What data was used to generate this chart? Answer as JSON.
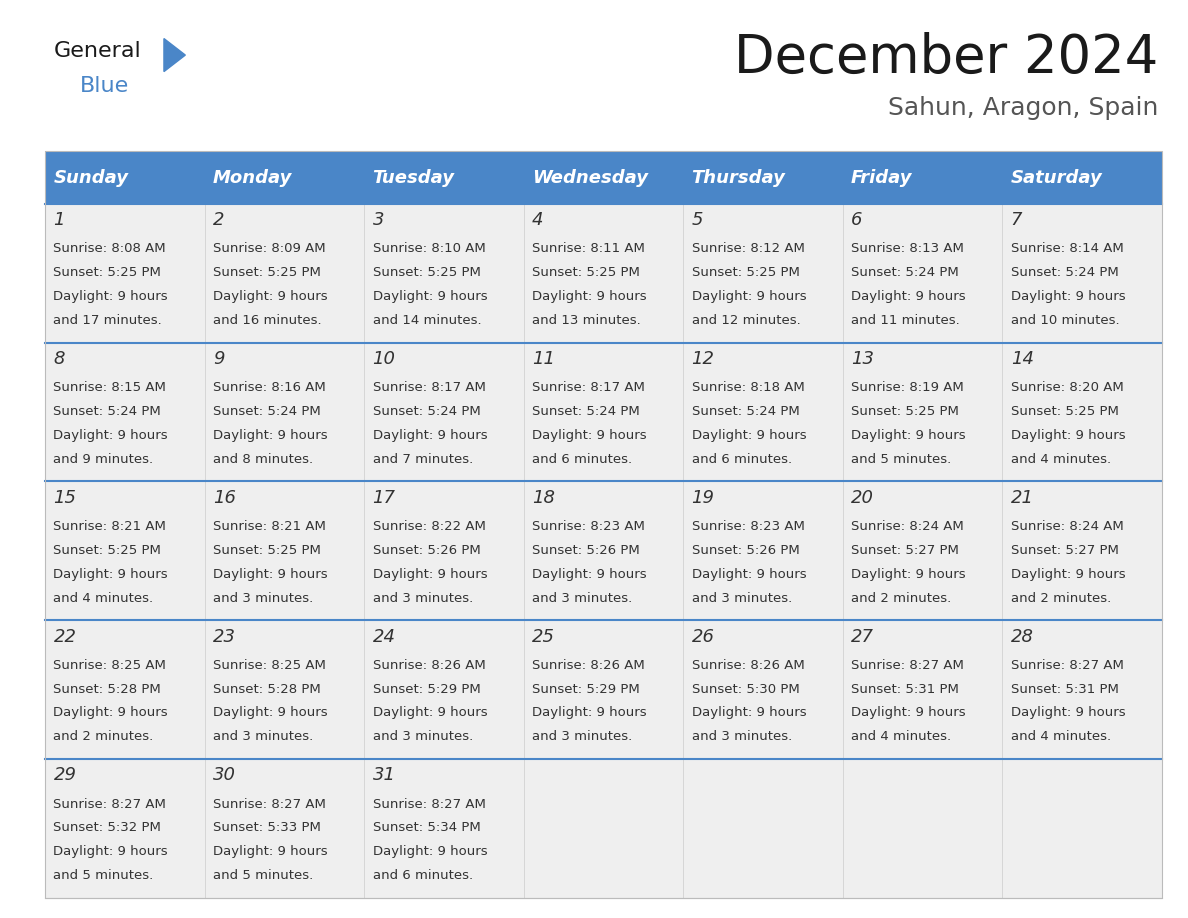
{
  "title": "December 2024",
  "subtitle": "Sahun, Aragon, Spain",
  "header_color": "#4a86c8",
  "header_text_color": "#ffffff",
  "cell_bg_color": "#efefef",
  "cell_text_color": "#333333",
  "border_color": "#4a86c8",
  "day_names": [
    "Sunday",
    "Monday",
    "Tuesday",
    "Wednesday",
    "Thursday",
    "Friday",
    "Saturday"
  ],
  "weeks": [
    [
      {
        "day": 1,
        "sunrise": "8:08 AM",
        "sunset": "5:25 PM",
        "daylight": "9 hours and 17 minutes."
      },
      {
        "day": 2,
        "sunrise": "8:09 AM",
        "sunset": "5:25 PM",
        "daylight": "9 hours and 16 minutes."
      },
      {
        "day": 3,
        "sunrise": "8:10 AM",
        "sunset": "5:25 PM",
        "daylight": "9 hours and 14 minutes."
      },
      {
        "day": 4,
        "sunrise": "8:11 AM",
        "sunset": "5:25 PM",
        "daylight": "9 hours and 13 minutes."
      },
      {
        "day": 5,
        "sunrise": "8:12 AM",
        "sunset": "5:25 PM",
        "daylight": "9 hours and 12 minutes."
      },
      {
        "day": 6,
        "sunrise": "8:13 AM",
        "sunset": "5:24 PM",
        "daylight": "9 hours and 11 minutes."
      },
      {
        "day": 7,
        "sunrise": "8:14 AM",
        "sunset": "5:24 PM",
        "daylight": "9 hours and 10 minutes."
      }
    ],
    [
      {
        "day": 8,
        "sunrise": "8:15 AM",
        "sunset": "5:24 PM",
        "daylight": "9 hours and 9 minutes."
      },
      {
        "day": 9,
        "sunrise": "8:16 AM",
        "sunset": "5:24 PM",
        "daylight": "9 hours and 8 minutes."
      },
      {
        "day": 10,
        "sunrise": "8:17 AM",
        "sunset": "5:24 PM",
        "daylight": "9 hours and 7 minutes."
      },
      {
        "day": 11,
        "sunrise": "8:17 AM",
        "sunset": "5:24 PM",
        "daylight": "9 hours and 6 minutes."
      },
      {
        "day": 12,
        "sunrise": "8:18 AM",
        "sunset": "5:24 PM",
        "daylight": "9 hours and 6 minutes."
      },
      {
        "day": 13,
        "sunrise": "8:19 AM",
        "sunset": "5:25 PM",
        "daylight": "9 hours and 5 minutes."
      },
      {
        "day": 14,
        "sunrise": "8:20 AM",
        "sunset": "5:25 PM",
        "daylight": "9 hours and 4 minutes."
      }
    ],
    [
      {
        "day": 15,
        "sunrise": "8:21 AM",
        "sunset": "5:25 PM",
        "daylight": "9 hours and 4 minutes."
      },
      {
        "day": 16,
        "sunrise": "8:21 AM",
        "sunset": "5:25 PM",
        "daylight": "9 hours and 3 minutes."
      },
      {
        "day": 17,
        "sunrise": "8:22 AM",
        "sunset": "5:26 PM",
        "daylight": "9 hours and 3 minutes."
      },
      {
        "day": 18,
        "sunrise": "8:23 AM",
        "sunset": "5:26 PM",
        "daylight": "9 hours and 3 minutes."
      },
      {
        "day": 19,
        "sunrise": "8:23 AM",
        "sunset": "5:26 PM",
        "daylight": "9 hours and 3 minutes."
      },
      {
        "day": 20,
        "sunrise": "8:24 AM",
        "sunset": "5:27 PM",
        "daylight": "9 hours and 2 minutes."
      },
      {
        "day": 21,
        "sunrise": "8:24 AM",
        "sunset": "5:27 PM",
        "daylight": "9 hours and 2 minutes."
      }
    ],
    [
      {
        "day": 22,
        "sunrise": "8:25 AM",
        "sunset": "5:28 PM",
        "daylight": "9 hours and 2 minutes."
      },
      {
        "day": 23,
        "sunrise": "8:25 AM",
        "sunset": "5:28 PM",
        "daylight": "9 hours and 3 minutes."
      },
      {
        "day": 24,
        "sunrise": "8:26 AM",
        "sunset": "5:29 PM",
        "daylight": "9 hours and 3 minutes."
      },
      {
        "day": 25,
        "sunrise": "8:26 AM",
        "sunset": "5:29 PM",
        "daylight": "9 hours and 3 minutes."
      },
      {
        "day": 26,
        "sunrise": "8:26 AM",
        "sunset": "5:30 PM",
        "daylight": "9 hours and 3 minutes."
      },
      {
        "day": 27,
        "sunrise": "8:27 AM",
        "sunset": "5:31 PM",
        "daylight": "9 hours and 4 minutes."
      },
      {
        "day": 28,
        "sunrise": "8:27 AM",
        "sunset": "5:31 PM",
        "daylight": "9 hours and 4 minutes."
      }
    ],
    [
      {
        "day": 29,
        "sunrise": "8:27 AM",
        "sunset": "5:32 PM",
        "daylight": "9 hours and 5 minutes."
      },
      {
        "day": 30,
        "sunrise": "8:27 AM",
        "sunset": "5:33 PM",
        "daylight": "9 hours and 5 minutes."
      },
      {
        "day": 31,
        "sunrise": "8:27 AM",
        "sunset": "5:34 PM",
        "daylight": "9 hours and 6 minutes."
      },
      null,
      null,
      null,
      null
    ]
  ],
  "logo_triangle_color": "#4a86c8",
  "title_fontsize": 38,
  "subtitle_fontsize": 18,
  "header_fontsize": 13,
  "day_num_fontsize": 13,
  "cell_fontsize": 9.5
}
